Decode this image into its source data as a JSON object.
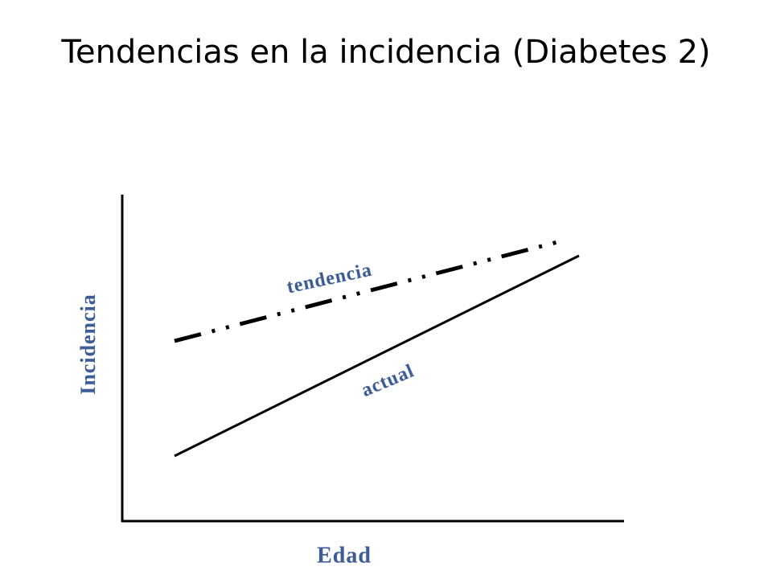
{
  "title": "Tendencias en la incidencia (Diabetes 2)",
  "axes": {
    "y_label": "Incidencia",
    "x_label": "Edad"
  },
  "lines": [
    {
      "label": "tendencia"
    },
    {
      "label": "actual"
    }
  ]
}
